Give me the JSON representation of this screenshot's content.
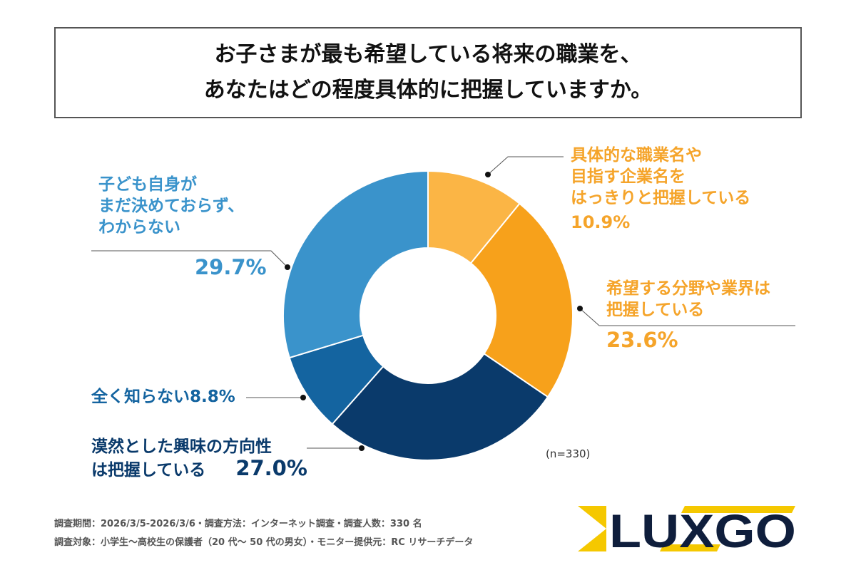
{
  "title": {
    "line1": "お子さまが最も希望している将来の職業を、",
    "line2": "あなたはどの程度具体的に把握していますか。"
  },
  "chart_data": {
    "type": "pie",
    "donut": true,
    "title": "お子さまが最も希望している将来の職業を、あなたはどの程度具体的に把握していますか。",
    "unit": "%",
    "slices": [
      {
        "label": "具体的な職業名や目指す企業名をはっきりと把握している",
        "lines": [
          "具体的な職業名や",
          "目指す企業名を",
          "はっきりと把握している"
        ],
        "value": 10.9,
        "display": "10.9%",
        "color": "#FBB545"
      },
      {
        "label": "希望する分野や業界は把握している",
        "lines": [
          "希望する分野や業界は",
          "把握している"
        ],
        "value": 23.6,
        "display": "23.6%",
        "color": "#F7A11B"
      },
      {
        "label": "漠然とした興味の方向性は把握している",
        "lines": [
          "漠然とした興味の方向性",
          "は把握している"
        ],
        "value": 27.0,
        "display": "27.0%",
        "color": "#0A3A6B"
      },
      {
        "label": "全く知らない",
        "lines": [
          "全く知らない"
        ],
        "value": 8.8,
        "display": "8.8%",
        "color": "#1464A0"
      },
      {
        "label": "子ども自身がまだ決めておらず、わからない",
        "lines": [
          "子ども自身が",
          "まだ決めておらず、",
          "わからない"
        ],
        "value": 29.7,
        "display": "29.7%",
        "color": "#3A93CB"
      }
    ],
    "sample": "(n=330)"
  },
  "footer": {
    "line1": "調査期間：2026/3/5-2026/3/6・調査方法：インターネット調査・調査人数：330 名",
    "line2": "調査対象：小学生〜高校生の保護者（20 代〜 50 代の男女）・モニター提供元：RC リサーチデータ"
  },
  "logo": {
    "text": "LUXGO",
    "colors": {
      "yellow": "#F5C800",
      "navy": "#0F1E3C"
    }
  }
}
